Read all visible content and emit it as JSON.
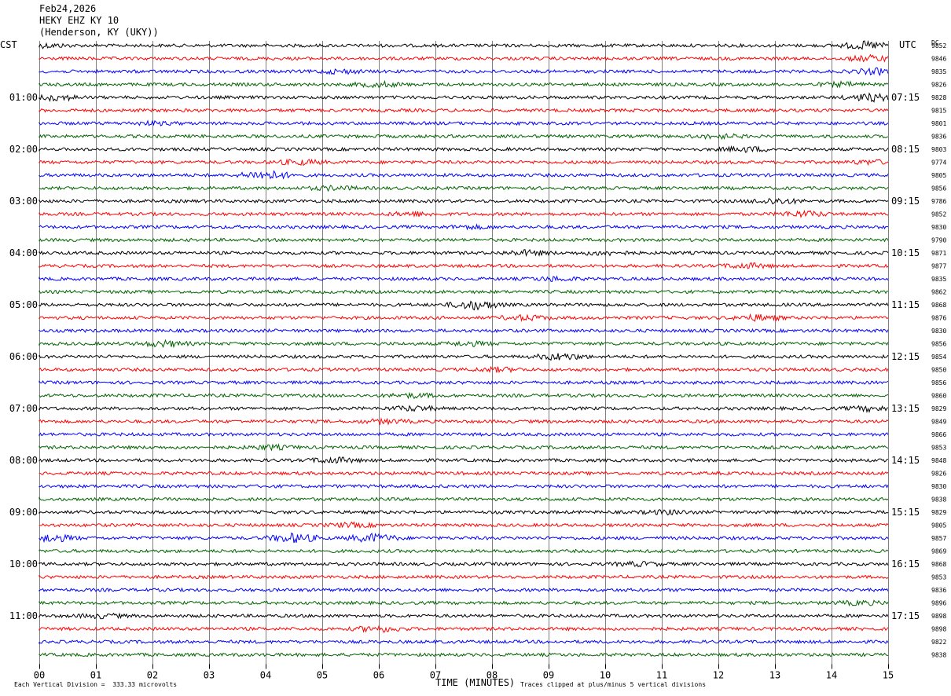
{
  "header": {
    "date": "Feb24,2026",
    "station": "HEKY EHZ KY 10",
    "location": "(Henderson, KY (UKY))"
  },
  "left_timezone": "CST",
  "right_timezone": "UTC",
  "dc_label": "DC",
  "footer": {
    "scale_note": "Each Vertical Division =  333.33 microvolts",
    "clip_note": "Traces clipped at plus/minus 5 vertical divisions"
  },
  "colors": {
    "trace_cycle": [
      "#000000",
      "#ff0000",
      "#0000ff",
      "#006400"
    ],
    "grid": "#7f7f7f",
    "background": "#ffffff"
  },
  "chart_data": {
    "type": "line",
    "subtype": "helicorder",
    "title": "",
    "xlabel": "TIME (MINUTES)",
    "ylabel": "",
    "xlim": [
      0,
      15
    ],
    "x_ticks": [
      "00",
      "01",
      "02",
      "03",
      "04",
      "05",
      "06",
      "07",
      "08",
      "09",
      "10",
      "11",
      "12",
      "13",
      "14",
      "15"
    ],
    "vertical_grid": true,
    "left_hour_labels": [
      "01:00",
      "02:00",
      "03:00",
      "04:00",
      "05:00",
      "06:00",
      "07:00",
      "08:00",
      "09:00",
      "10:00",
      "11:00"
    ],
    "right_hour_labels": [
      "07:15",
      "08:15",
      "09:15",
      "10:15",
      "11:15",
      "12:15",
      "13:15",
      "14:15",
      "15:15",
      "16:15",
      "17:15"
    ],
    "lines_per_hour": 4,
    "rows": [
      {
        "dc": "9852",
        "color": "black",
        "bursts": [
          [
            0.1,
            2
          ],
          [
            14.6,
            4
          ]
        ]
      },
      {
        "dc": "9846",
        "color": "red",
        "bursts": [
          [
            14.7,
            3
          ]
        ]
      },
      {
        "dc": "9835",
        "color": "blue",
        "bursts": [
          [
            5.3,
            2
          ],
          [
            14.8,
            3
          ]
        ]
      },
      {
        "dc": "9826",
        "color": "green",
        "bursts": [
          [
            6,
            2.5
          ],
          [
            14.2,
            2
          ]
        ]
      },
      {
        "dc": "9828",
        "color": "black",
        "bursts": [
          [
            0.3,
            3
          ],
          [
            14.7,
            4
          ]
        ]
      },
      {
        "dc": "9815",
        "color": "red",
        "bursts": []
      },
      {
        "dc": "9801",
        "color": "blue",
        "bursts": [
          [
            2,
            1.5
          ]
        ]
      },
      {
        "dc": "9836",
        "color": "green",
        "bursts": [
          [
            12,
            2
          ]
        ]
      },
      {
        "dc": "9803",
        "color": "black",
        "bursts": [
          [
            12.5,
            2.5
          ]
        ]
      },
      {
        "dc": "9774",
        "color": "red",
        "bursts": [
          [
            4.6,
            2.5
          ],
          [
            14.7,
            2
          ]
        ]
      },
      {
        "dc": "9805",
        "color": "blue",
        "bursts": [
          [
            4,
            5
          ]
        ]
      },
      {
        "dc": "9856",
        "color": "green",
        "bursts": [
          [
            5.2,
            2
          ]
        ]
      },
      {
        "dc": "9786",
        "color": "black",
        "bursts": [
          [
            13,
            3
          ]
        ]
      },
      {
        "dc": "9852",
        "color": "red",
        "bursts": [
          [
            13.5,
            3
          ],
          [
            6.6,
            2
          ]
        ]
      },
      {
        "dc": "9830",
        "color": "blue",
        "bursts": [
          [
            7.6,
            1.5
          ]
        ]
      },
      {
        "dc": "9790",
        "color": "green",
        "bursts": []
      },
      {
        "dc": "9871",
        "color": "black",
        "bursts": [
          [
            8.6,
            2.5
          ],
          [
            10,
            2
          ]
        ]
      },
      {
        "dc": "9877",
        "color": "red",
        "bursts": [
          [
            12.5,
            2.5
          ]
        ]
      },
      {
        "dc": "9835",
        "color": "blue",
        "bursts": [
          [
            9.1,
            2
          ]
        ]
      },
      {
        "dc": "9862",
        "color": "green",
        "bursts": []
      },
      {
        "dc": "9868",
        "color": "black",
        "bursts": [
          [
            7.7,
            5
          ]
        ]
      },
      {
        "dc": "9876",
        "color": "red",
        "bursts": [
          [
            8.6,
            2.5
          ],
          [
            12.7,
            3
          ]
        ]
      },
      {
        "dc": "9830",
        "color": "blue",
        "bursts": []
      },
      {
        "dc": "9856",
        "color": "green",
        "bursts": [
          [
            2.2,
            3
          ],
          [
            7.6,
            2
          ]
        ]
      },
      {
        "dc": "9854",
        "color": "black",
        "bursts": [
          [
            9.2,
            3.5
          ]
        ]
      },
      {
        "dc": "9850",
        "color": "red",
        "bursts": [
          [
            8.1,
            2
          ]
        ]
      },
      {
        "dc": "9856",
        "color": "blue",
        "bursts": []
      },
      {
        "dc": "9860",
        "color": "green",
        "bursts": [
          [
            6.6,
            2
          ]
        ]
      },
      {
        "dc": "9829",
        "color": "black",
        "bursts": [
          [
            6.6,
            2.5
          ],
          [
            14.7,
            2.5
          ]
        ]
      },
      {
        "dc": "9849",
        "color": "red",
        "bursts": [
          [
            6.1,
            2
          ]
        ]
      },
      {
        "dc": "9866",
        "color": "blue",
        "bursts": []
      },
      {
        "dc": "9853",
        "color": "green",
        "bursts": [
          [
            4.1,
            2
          ]
        ]
      },
      {
        "dc": "9848",
        "color": "black",
        "bursts": [
          [
            5.2,
            3
          ]
        ]
      },
      {
        "dc": "9826",
        "color": "red",
        "bursts": []
      },
      {
        "dc": "9830",
        "color": "blue",
        "bursts": []
      },
      {
        "dc": "9838",
        "color": "green",
        "bursts": []
      },
      {
        "dc": "9829",
        "color": "black",
        "bursts": [
          [
            11.1,
            2
          ]
        ]
      },
      {
        "dc": "9805",
        "color": "red",
        "bursts": [
          [
            5.5,
            2
          ]
        ]
      },
      {
        "dc": "9857",
        "color": "blue",
        "bursts": [
          [
            0.2,
            4
          ],
          [
            4.5,
            5
          ],
          [
            5.9,
            4.5
          ]
        ]
      },
      {
        "dc": "9869",
        "color": "green",
        "bursts": []
      },
      {
        "dc": "9868",
        "color": "black",
        "bursts": [
          [
            10.6,
            2
          ]
        ]
      },
      {
        "dc": "9853",
        "color": "red",
        "bursts": []
      },
      {
        "dc": "9836",
        "color": "blue",
        "bursts": []
      },
      {
        "dc": "9896",
        "color": "green",
        "bursts": [
          [
            14.5,
            2
          ]
        ]
      },
      {
        "dc": "9898",
        "color": "black",
        "bursts": [
          [
            1.1,
            2
          ]
        ]
      },
      {
        "dc": "9898",
        "color": "red",
        "bursts": [
          [
            6,
            3
          ]
        ]
      },
      {
        "dc": "9822",
        "color": "blue",
        "bursts": []
      },
      {
        "dc": "9838",
        "color": "green",
        "bursts": []
      }
    ]
  }
}
